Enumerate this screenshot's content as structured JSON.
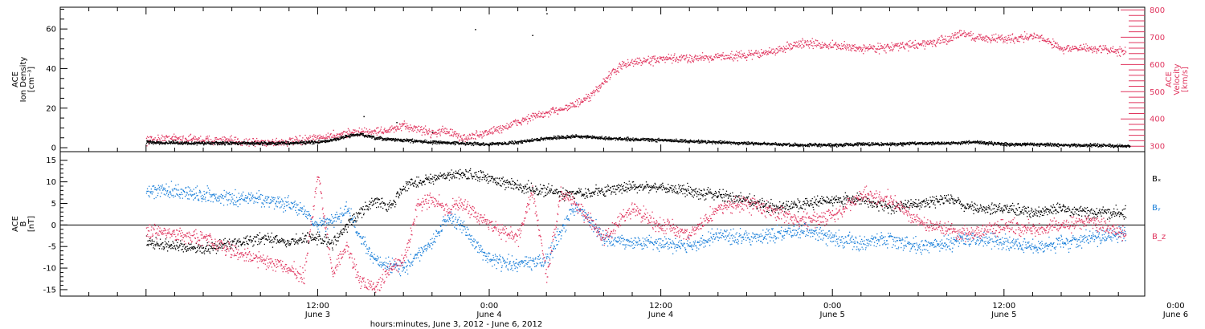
{
  "chart_data": [
    {
      "type": "scatter",
      "panel": "top",
      "x_range_hours": [
        0,
        69
      ],
      "x_ticks": [
        {
          "label": "12:00",
          "sublabel": "June 3"
        },
        {
          "label": "0:00",
          "sublabel": "June 4"
        },
        {
          "label": "12:00",
          "sublabel": "June 4"
        },
        {
          "label": "0:00",
          "sublabel": "June 5"
        },
        {
          "label": "12:00",
          "sublabel": "June 5"
        },
        {
          "label": "0:00",
          "sublabel": "June 6"
        }
      ],
      "y_left": {
        "label_lines": [
          "ACE",
          "Ion Density",
          "[cm⁻³]"
        ],
        "range": [
          -2,
          71
        ],
        "tick_labels": [
          "0",
          "20",
          "40",
          "60"
        ]
      },
      "y_right": {
        "label_lines": [
          "ACE",
          "Velocity",
          "[km/s]"
        ],
        "range": [
          280,
          810
        ],
        "tick_labels": [
          "300",
          "400",
          "500",
          "600",
          "700",
          "800"
        ]
      },
      "series": [
        {
          "axis": "left",
          "color": "#000000",
          "x": [
            0,
            3,
            6,
            9,
            12,
            13,
            14,
            15,
            16,
            18,
            20,
            22,
            24,
            26,
            28,
            30,
            32,
            34,
            36,
            38,
            40,
            42,
            44,
            46,
            48,
            50,
            52,
            54,
            56,
            58,
            60,
            62,
            64,
            66,
            68.8
          ],
          "values": [
            3,
            2.5,
            2.5,
            2.5,
            3,
            4,
            6,
            7,
            5,
            4,
            3,
            2.5,
            2,
            3,
            5,
            6,
            5,
            4.5,
            4,
            3.5,
            3,
            2.5,
            2,
            1.5,
            1.5,
            2,
            2,
            2.5,
            2.5,
            3,
            2,
            2,
            1.5,
            1.5,
            1
          ],
          "outliers": [
            [
              15.2,
              16
            ],
            [
              17.5,
              13
            ],
            [
              20,
              8
            ],
            [
              28,
              68
            ],
            [
              27,
              57
            ],
            [
              23,
              60
            ]
          ]
        },
        {
          "axis": "right",
          "color": "#e0365f",
          "x": [
            0,
            2,
            4,
            6,
            8,
            10,
            11,
            12,
            14,
            16,
            17,
            18,
            19,
            20,
            21,
            22,
            23,
            24,
            25,
            26,
            27,
            28,
            29,
            30,
            31,
            32,
            33,
            34,
            36,
            38,
            40,
            42,
            44,
            45,
            46,
            48,
            50,
            52,
            54,
            56,
            57,
            58,
            60,
            62,
            63,
            64,
            66,
            68.5
          ],
          "values": [
            325,
            330,
            325,
            320,
            315,
            318,
            322,
            330,
            350,
            355,
            360,
            375,
            365,
            350,
            360,
            330,
            340,
            355,
            370,
            390,
            410,
            420,
            440,
            455,
            480,
            540,
            590,
            610,
            620,
            625,
            630,
            635,
            650,
            670,
            680,
            670,
            660,
            665,
            675,
            690,
            720,
            700,
            695,
            705,
            690,
            660,
            660,
            650
          ]
        }
      ]
    },
    {
      "type": "scatter",
      "panel": "bottom",
      "x_range_hours": [
        0,
        69
      ],
      "x_axis_label": "hours:minutes, June  3, 2012 - June  6, 2012",
      "y": {
        "label_lines": [
          "ACE",
          "B",
          "[nT]"
        ],
        "range": [
          -16.5,
          17
        ],
        "tick_labels": [
          "15",
          "10",
          "5",
          "0",
          "-5",
          "-10",
          "-15"
        ]
      },
      "zero_line": true,
      "series": [
        {
          "name": "Bₓ",
          "color": "#000000",
          "x": [
            0,
            2,
            4,
            6,
            8,
            10,
            11,
            12,
            13,
            14,
            15,
            16,
            17,
            18,
            19,
            20,
            22,
            24,
            26,
            28,
            30,
            32,
            34,
            36,
            38,
            40,
            42,
            44,
            46,
            48,
            50,
            52,
            54,
            56,
            58,
            60,
            62,
            64,
            66,
            68.5
          ],
          "values": [
            -4,
            -5,
            -5.5,
            -4,
            -3,
            -4,
            -3,
            -3,
            -4,
            0,
            3,
            6,
            4,
            9,
            10,
            11,
            12,
            11,
            9,
            8,
            7,
            8,
            9,
            9,
            8,
            7,
            6,
            4,
            5,
            6,
            6,
            4,
            5,
            6,
            4,
            4,
            3,
            4,
            3,
            3
          ]
        },
        {
          "name": "Bᵧ",
          "color": "#1a7fd9",
          "x": [
            0,
            2,
            4,
            6,
            8,
            10,
            11,
            12,
            13,
            14,
            15,
            16,
            17,
            18,
            19,
            20,
            21,
            22,
            24,
            26,
            28,
            30,
            32,
            34,
            36,
            38,
            40,
            42,
            44,
            46,
            48,
            50,
            52,
            54,
            56,
            58,
            60,
            62,
            64,
            66,
            68.5
          ],
          "values": [
            8,
            8,
            7,
            6,
            6,
            5,
            3,
            0,
            1,
            4,
            -3,
            -8,
            -9,
            -10,
            -7,
            -4,
            2,
            0,
            -8,
            -9,
            -8,
            5,
            -3,
            -4,
            -4,
            -5,
            -2,
            -3,
            -2,
            -1,
            -3,
            -4,
            -3,
            -5,
            -4,
            -3,
            -4,
            -5,
            -4,
            -3,
            -2
          ]
        },
        {
          "name": "B_z",
          "color": "#e0365f",
          "x": [
            0,
            2,
            4,
            6,
            8,
            10,
            11,
            12,
            13,
            14,
            15,
            16,
            17,
            18,
            19,
            20,
            21,
            22,
            24,
            26,
            27,
            28,
            29,
            30,
            32,
            34,
            36,
            38,
            40,
            42,
            44,
            46,
            48,
            50,
            52,
            54,
            56,
            58,
            60,
            62,
            64,
            66,
            68.5
          ],
          "values": [
            -1,
            -2,
            -3,
            -6,
            -8,
            -10,
            -12,
            12,
            -11,
            -5,
            -13,
            -15,
            -10,
            -8,
            5,
            6,
            4,
            5,
            0,
            -3,
            8,
            -12,
            8,
            5,
            -3,
            4,
            0,
            -2,
            4,
            5,
            3,
            1,
            2,
            7,
            6,
            1,
            -1,
            -2,
            0,
            -1,
            0,
            1,
            -2
          ]
        }
      ]
    }
  ]
}
